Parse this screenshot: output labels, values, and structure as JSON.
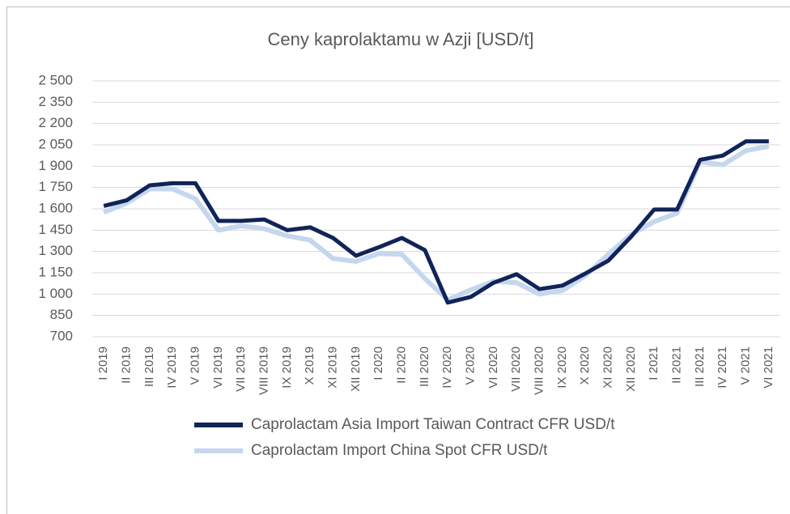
{
  "chart_data": {
    "type": "line",
    "title": "Ceny kaprolaktamu w Azji [USD/t]",
    "categories": [
      "I 2019",
      "II 2019",
      "III 2019",
      "IV 2019",
      "V 2019",
      "VI 2019",
      "VII 2019",
      "VIII 2019",
      "IX 2019",
      "X 2019",
      "XI 2019",
      "XII 2019",
      "I 2020",
      "II 2020",
      "III 2020",
      "IV 2020",
      "V 2020",
      "VI 2020",
      "VII 2020",
      "VIII 2020",
      "IX 2020",
      "X 2020",
      "XI 2020",
      "XII 2020",
      "I 2021",
      "II 2021",
      "III 2021",
      "IV 2021",
      "V 2021",
      "VI 2021"
    ],
    "series": [
      {
        "name": "Caprolactam Asia Import Taiwan Contract CFR USD/t",
        "color": "#10245a",
        "values": [
          1620,
          1660,
          1765,
          1780,
          1780,
          1515,
          1515,
          1525,
          1450,
          1470,
          1395,
          1270,
          1330,
          1395,
          1310,
          940,
          980,
          1080,
          1140,
          1035,
          1060,
          1145,
          1235,
          1405,
          1595,
          1595,
          1945,
          1975,
          2075,
          2075
        ]
      },
      {
        "name": "Caprolactam Import China Spot CFR USD/t",
        "color": "#c5d6ef",
        "values": [
          1575,
          1640,
          1740,
          1740,
          1670,
          1450,
          1480,
          1460,
          1410,
          1380,
          1250,
          1230,
          1285,
          1280,
          1110,
          960,
          1030,
          1090,
          1080,
          1000,
          1025,
          1130,
          1280,
          1420,
          1510,
          1570,
          1930,
          1910,
          2010,
          2040
        ]
      }
    ],
    "ylim": [
      700,
      2500
    ],
    "yticks": [
      700,
      850,
      {
        "value": 1000,
        "label": "1 000"
      },
      {
        "value": 1150,
        "label": "1 150"
      },
      {
        "value": 1300,
        "label": "1 300"
      },
      {
        "value": 1450,
        "label": "1 450"
      },
      {
        "value": 1600,
        "label": "1 600"
      },
      {
        "value": 1750,
        "label": "1 750"
      },
      {
        "value": 1900,
        "label": "1 900"
      },
      {
        "value": 2050,
        "label": "2 050"
      },
      {
        "value": 2200,
        "label": "2 200"
      },
      {
        "value": 2350,
        "label": "2 350"
      },
      {
        "value": 2500,
        "label": "2 500"
      }
    ],
    "grid": true
  }
}
